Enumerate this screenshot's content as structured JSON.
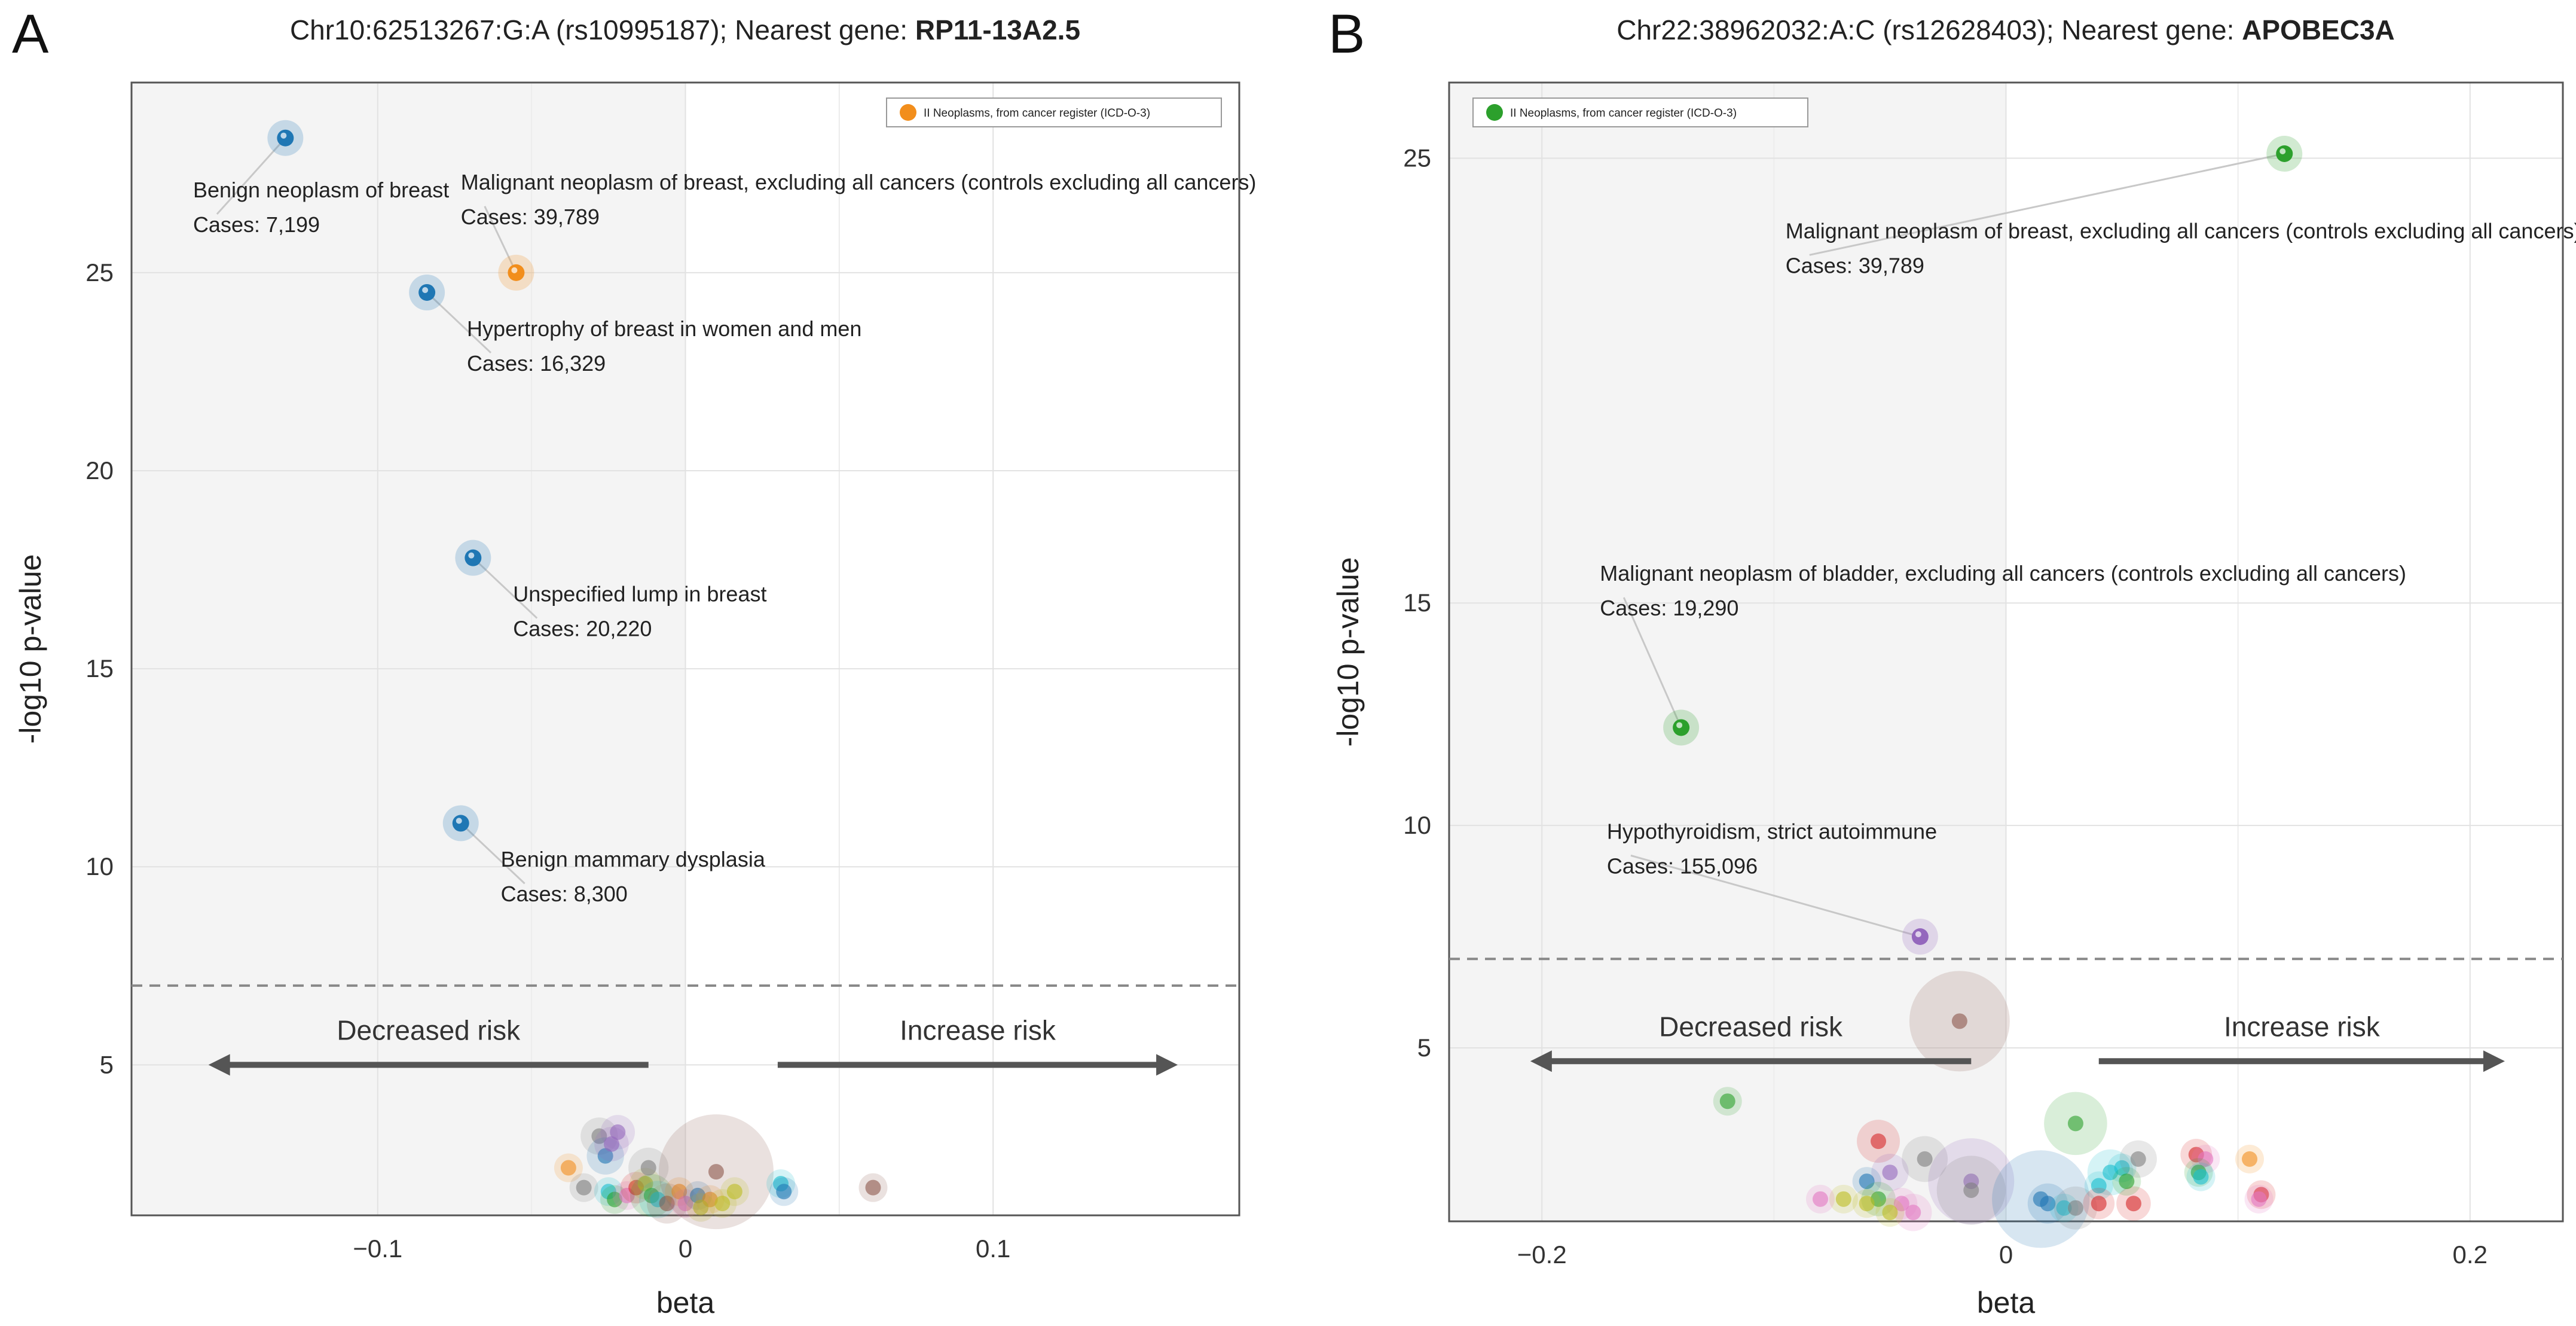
{
  "chart_data": [
    {
      "type": "scatter",
      "panel_label": "A",
      "title_prefix": "Chr10:62513267:G:A (rs10995187); Nearest gene: ",
      "title_gene": "RP11-13A2.5",
      "xlabel": "beta",
      "ylabel": "-log10 p-value",
      "xlim": [
        -0.18,
        0.18
      ],
      "ylim": [
        1.2,
        29.8
      ],
      "xticks": [
        {
          "v": -0.1,
          "label": "−0.1"
        },
        {
          "v": 0,
          "label": "0"
        },
        {
          "v": 0.1,
          "label": "0.1"
        }
      ],
      "yticks": [
        {
          "v": 5,
          "label": "5"
        },
        {
          "v": 10,
          "label": "10"
        },
        {
          "v": 15,
          "label": "15"
        },
        {
          "v": 20,
          "label": "20"
        },
        {
          "v": 25,
          "label": "25"
        }
      ],
      "threshold": 7.0,
      "shade_x_max": 0,
      "legend": {
        "position": "top-right",
        "label": "II Neoplasms, from cancer register (ICD-O-3)",
        "color": "#f28e1c"
      },
      "risk_labels": {
        "decreased": "Decreased risk",
        "increased": "Increase risk",
        "arrow_y": 5,
        "left_x": [
          -0.155,
          -0.012
        ],
        "right_x": [
          0.03,
          0.16
        ]
      },
      "annotated_points": [
        {
          "x": -0.13,
          "y": 28.4,
          "color": "#1f77b4",
          "label": "Benign neoplasm of breast",
          "cases": "Cases: 7,199",
          "lx": -0.16,
          "ly": 26.9
        },
        {
          "x": -0.055,
          "y": 25.0,
          "color": "#f28e1c",
          "label": "Malignant neoplasm of breast, excluding all cancers (controls excluding all cancers)",
          "cases": "Cases: 39,789",
          "lx": -0.073,
          "ly": 27.1
        },
        {
          "x": -0.084,
          "y": 24.5,
          "color": "#1f77b4",
          "label": "Hypertrophy of breast in women and men",
          "cases": "Cases: 16,329",
          "lx": -0.071,
          "ly": 23.4
        },
        {
          "x": -0.069,
          "y": 17.8,
          "color": "#1f77b4",
          "label": "Unspecified lump in breast",
          "cases": "Cases: 20,220",
          "lx": -0.056,
          "ly": 16.7
        },
        {
          "x": -0.073,
          "y": 11.1,
          "color": "#1f77b4",
          "label": "Benign mammary dysplasia",
          "cases": "Cases: 8,300",
          "lx": -0.06,
          "ly": 10.0
        }
      ],
      "background_points": [
        {
          "x": -0.038,
          "y": 2.4,
          "c": "#f28e1c",
          "r": 1
        },
        {
          "x": -0.033,
          "y": 1.9,
          "c": "#7f7f7f",
          "r": 1
        },
        {
          "x": -0.028,
          "y": 3.2,
          "c": "#7f7f7f",
          "r": 1.3
        },
        {
          "x": -0.026,
          "y": 2.7,
          "c": "#1f77b4",
          "r": 1.3
        },
        {
          "x": -0.024,
          "y": 3.0,
          "c": "#9467bd",
          "r": 1.2
        },
        {
          "x": -0.022,
          "y": 3.3,
          "c": "#9467bd",
          "r": 1.2
        },
        {
          "x": -0.025,
          "y": 1.8,
          "c": "#17becf",
          "r": 1
        },
        {
          "x": -0.023,
          "y": 1.6,
          "c": "#2ca02c",
          "r": 1
        },
        {
          "x": -0.019,
          "y": 1.7,
          "c": "#e377c2",
          "r": 1
        },
        {
          "x": -0.016,
          "y": 1.9,
          "c": "#d62728",
          "r": 1.1
        },
        {
          "x": -0.013,
          "y": 2.0,
          "c": "#bcbd22",
          "r": 1.1
        },
        {
          "x": -0.011,
          "y": 1.7,
          "c": "#2ca02c",
          "r": 1.5
        },
        {
          "x": -0.009,
          "y": 1.6,
          "c": "#17becf",
          "r": 1.3
        },
        {
          "x": -0.012,
          "y": 2.4,
          "c": "#7f7f7f",
          "r": 1.4
        },
        {
          "x": -0.006,
          "y": 1.5,
          "c": "#8c564b",
          "r": 1.4
        },
        {
          "x": -0.002,
          "y": 1.8,
          "c": "#f28e1c",
          "r": 1
        },
        {
          "x": 0.0,
          "y": 1.5,
          "c": "#e377c2",
          "r": 1
        },
        {
          "x": 0.004,
          "y": 1.7,
          "c": "#1f77b4",
          "r": 1
        },
        {
          "x": 0.008,
          "y": 1.6,
          "c": "#f28e1c",
          "r": 1
        },
        {
          "x": 0.005,
          "y": 1.4,
          "c": "#bcbd22",
          "r": 1
        },
        {
          "x": 0.01,
          "y": 2.3,
          "c": "#8c564b",
          "r": 4.0
        },
        {
          "x": 0.012,
          "y": 1.5,
          "c": "#bcbd22",
          "r": 1
        },
        {
          "x": 0.016,
          "y": 1.8,
          "c": "#bcbd22",
          "r": 1
        },
        {
          "x": 0.031,
          "y": 2.0,
          "c": "#17becf",
          "r": 1
        },
        {
          "x": 0.032,
          "y": 1.8,
          "c": "#1f77b4",
          "r": 1
        },
        {
          "x": 0.061,
          "y": 1.9,
          "c": "#8c564b",
          "r": 1
        }
      ]
    },
    {
      "type": "scatter",
      "panel_label": "B",
      "title_prefix": "Chr22:38962032:A:C (rs12628403); Nearest gene: ",
      "title_gene": "APOBEC3A",
      "xlabel": "beta",
      "ylabel": "-log10 p-value",
      "xlim": [
        -0.24,
        0.24
      ],
      "ylim": [
        1.1,
        26.7
      ],
      "xticks": [
        {
          "v": -0.2,
          "label": "−0.2"
        },
        {
          "v": 0,
          "label": "0"
        },
        {
          "v": 0.2,
          "label": "0.2"
        }
      ],
      "yticks": [
        {
          "v": 5,
          "label": "5"
        },
        {
          "v": 10,
          "label": "10"
        },
        {
          "v": 15,
          "label": "15"
        },
        {
          "v": 25,
          "label": "25"
        }
      ],
      "ytick_positions_data": [
        5,
        10,
        15,
        25
      ],
      "threshold": 7.0,
      "shade_x_max": 0,
      "legend": {
        "position": "top-left",
        "label": "II Neoplasms, from cancer register (ICD-O-3)",
        "color": "#2ca02c"
      },
      "risk_labels": {
        "decreased": "Decreased risk",
        "increased": "Increase risk",
        "arrow_y": 4.7,
        "left_x": [
          -0.205,
          -0.015
        ],
        "right_x": [
          0.04,
          0.215
        ]
      },
      "annotated_points": [
        {
          "x": 0.12,
          "y": 25.1,
          "color": "#2ca02c",
          "label": "Malignant neoplasm of breast, excluding all cancers (controls excluding all cancers)",
          "cases": "Cases: 39,789",
          "lx": -0.095,
          "ly": 23.2
        },
        {
          "x": -0.14,
          "y": 12.2,
          "color": "#2ca02c",
          "label": "Malignant neoplasm of bladder, excluding all cancers (controls excluding all cancers)",
          "cases": "Cases: 19,290",
          "lx": -0.175,
          "ly": 15.5
        },
        {
          "x": -0.037,
          "y": 7.5,
          "color": "#9467bd",
          "label": "Hypothyroidism, strict autoimmune",
          "cases": "Cases: 155,096",
          "lx": -0.172,
          "ly": 9.7
        }
      ],
      "background_points": [
        {
          "x": -0.02,
          "y": 5.6,
          "c": "#8c564b",
          "r": 3.5
        },
        {
          "x": -0.12,
          "y": 3.8,
          "c": "#2ca02c",
          "r": 1
        },
        {
          "x": 0.03,
          "y": 3.3,
          "c": "#2ca02c",
          "r": 2.2
        },
        {
          "x": -0.055,
          "y": 2.9,
          "c": "#d62728",
          "r": 1.5
        },
        {
          "x": -0.035,
          "y": 2.5,
          "c": "#7f7f7f",
          "r": 1.6
        },
        {
          "x": -0.05,
          "y": 2.2,
          "c": "#9467bd",
          "r": 1.3
        },
        {
          "x": -0.015,
          "y": 2.0,
          "c": "#9467bd",
          "r": 3.0
        },
        {
          "x": -0.015,
          "y": 1.8,
          "c": "#7f7f7f",
          "r": 2.4
        },
        {
          "x": -0.06,
          "y": 2.0,
          "c": "#1f77b4",
          "r": 1
        },
        {
          "x": -0.055,
          "y": 1.6,
          "c": "#2ca02c",
          "r": 1.2
        },
        {
          "x": -0.045,
          "y": 1.5,
          "c": "#e377c2",
          "r": 1.1
        },
        {
          "x": -0.06,
          "y": 1.5,
          "c": "#bcbd22",
          "r": 1
        },
        {
          "x": -0.07,
          "y": 1.6,
          "c": "#bcbd22",
          "r": 1
        },
        {
          "x": -0.08,
          "y": 1.6,
          "c": "#e377c2",
          "r": 1
        },
        {
          "x": -0.04,
          "y": 1.3,
          "c": "#e377c2",
          "r": 1.3
        },
        {
          "x": -0.05,
          "y": 1.3,
          "c": "#bcbd22",
          "r": 1
        },
        {
          "x": 0.015,
          "y": 1.6,
          "c": "#1f77b4",
          "r": 3.4
        },
        {
          "x": 0.018,
          "y": 1.5,
          "c": "#1f77b4",
          "r": 1.4
        },
        {
          "x": 0.025,
          "y": 1.4,
          "c": "#17becf",
          "r": 1
        },
        {
          "x": 0.03,
          "y": 1.4,
          "c": "#7f7f7f",
          "r": 1.5
        },
        {
          "x": 0.04,
          "y": 1.9,
          "c": "#17becf",
          "r": 1
        },
        {
          "x": 0.045,
          "y": 2.2,
          "c": "#17becf",
          "r": 1.6
        },
        {
          "x": 0.04,
          "y": 1.5,
          "c": "#d62728",
          "r": 1.1
        },
        {
          "x": 0.055,
          "y": 1.5,
          "c": "#d62728",
          "r": 1.2
        },
        {
          "x": 0.05,
          "y": 2.3,
          "c": "#17becf",
          "r": 1
        },
        {
          "x": 0.052,
          "y": 2.0,
          "c": "#2ca02c",
          "r": 1
        },
        {
          "x": 0.057,
          "y": 2.5,
          "c": "#7f7f7f",
          "r": 1.3
        },
        {
          "x": 0.082,
          "y": 2.6,
          "c": "#d62728",
          "r": 1.1
        },
        {
          "x": 0.086,
          "y": 2.5,
          "c": "#e377c2",
          "r": 1
        },
        {
          "x": 0.083,
          "y": 2.2,
          "c": "#2ca02c",
          "r": 1
        },
        {
          "x": 0.084,
          "y": 2.1,
          "c": "#17becf",
          "r": 1
        },
        {
          "x": 0.105,
          "y": 2.5,
          "c": "#f28e1c",
          "r": 1
        },
        {
          "x": 0.11,
          "y": 1.7,
          "c": "#d62728",
          "r": 1
        },
        {
          "x": 0.109,
          "y": 1.6,
          "c": "#e377c2",
          "r": 1
        }
      ]
    }
  ]
}
